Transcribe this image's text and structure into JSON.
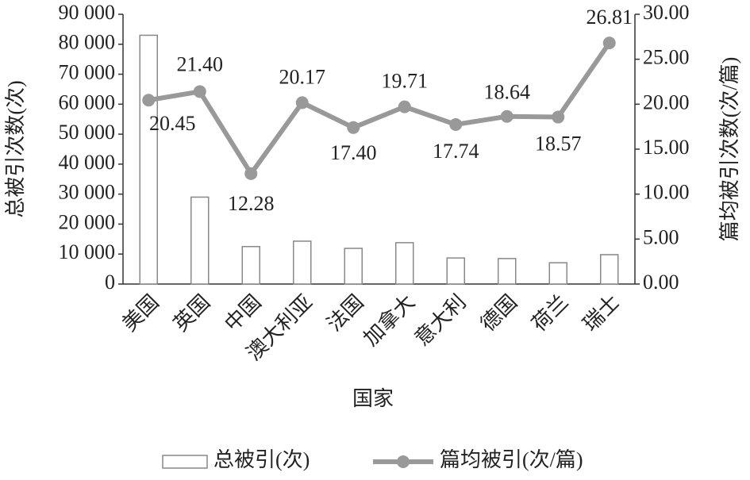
{
  "chart_data": {
    "type": "bar_line",
    "x_label": "国家",
    "y_label": "总被引次数(次)",
    "y2_label": "篇均被引次数(次/篇)",
    "categories": [
      "美国",
      "英国",
      "中国",
      "澳大利亚",
      "法国",
      "加拿大",
      "意大利",
      "德国",
      "荷兰",
      "瑞士"
    ],
    "series": [
      {
        "name": "总被引(次)",
        "type": "bar",
        "color": "#888888",
        "values": [
          83000,
          29000,
          12500,
          14300,
          11900,
          13800,
          8700,
          8500,
          7100,
          9800
        ]
      },
      {
        "name": "篇均被引(次/篇)",
        "type": "line",
        "axis": "y2",
        "color": "#999999",
        "values": [
          20.45,
          21.4,
          12.28,
          20.17,
          17.4,
          19.71,
          17.74,
          18.64,
          18.57,
          26.81
        ],
        "value_labels": [
          "20.45",
          "21.40",
          "12.28",
          "20.17",
          "17.40",
          "19.71",
          "17.74",
          "18.64",
          "18.57",
          "26.81"
        ]
      }
    ],
    "ylim": [
      0,
      90000
    ],
    "yticks": [
      0,
      {
        "value": 10000,
        "label": "10 000"
      },
      {
        "value": 20000,
        "label": "20 000"
      },
      {
        "value": 30000,
        "label": "30 000"
      },
      {
        "value": 40000,
        "label": "40 000"
      },
      {
        "value": 50000,
        "label": "50 000"
      },
      {
        "value": 60000,
        "label": "60 000"
      },
      {
        "value": 70000,
        "label": "70 000"
      },
      {
        "value": 80000,
        "label": "80 000"
      },
      {
        "value": 90000,
        "label": "90 000"
      }
    ],
    "y2lim": [
      0,
      30
    ],
    "y2ticks": [
      {
        "value": 0,
        "label": "0.00"
      },
      {
        "value": 5,
        "label": "5.00"
      },
      {
        "value": 10,
        "label": "10.00"
      },
      {
        "value": 15,
        "label": "15.00"
      },
      {
        "value": 20,
        "label": "20.00"
      },
      {
        "value": 25,
        "label": "25.00"
      },
      {
        "value": 30,
        "label": "30.00"
      }
    ],
    "legend": "bottom"
  }
}
